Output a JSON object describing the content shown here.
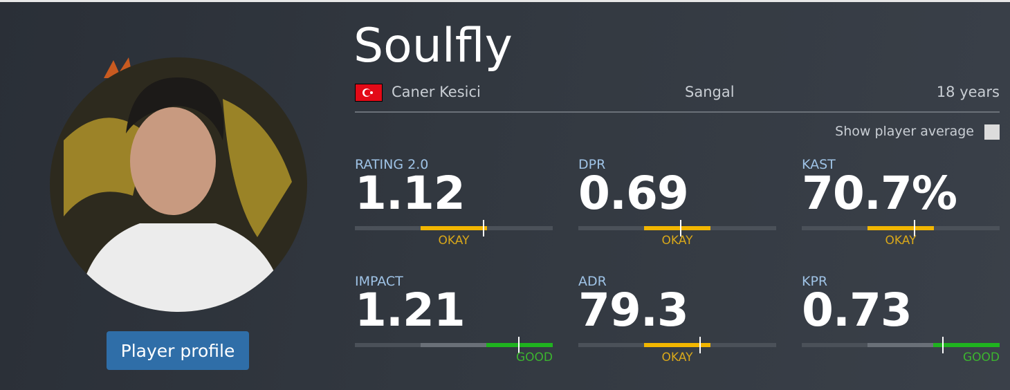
{
  "player": {
    "nickname": "Soulfly",
    "real_name": "Caner Kesici",
    "team": "Sangal",
    "age": "18 years"
  },
  "show_average_label": "Show player average",
  "button": "Player profile",
  "stats": [
    {
      "label": "RATING 2.0",
      "value": "1.12",
      "rating": "OKAY"
    },
    {
      "label": "DPR",
      "value": "0.69",
      "rating": "OKAY"
    },
    {
      "label": "KAST",
      "value": "70.7%",
      "rating": "OKAY"
    },
    {
      "label": "IMPACT",
      "value": "1.21",
      "rating": "GOOD"
    },
    {
      "label": "ADR",
      "value": "79.3",
      "rating": "OKAY"
    },
    {
      "label": "KPR",
      "value": "0.73",
      "rating": "GOOD"
    }
  ]
}
